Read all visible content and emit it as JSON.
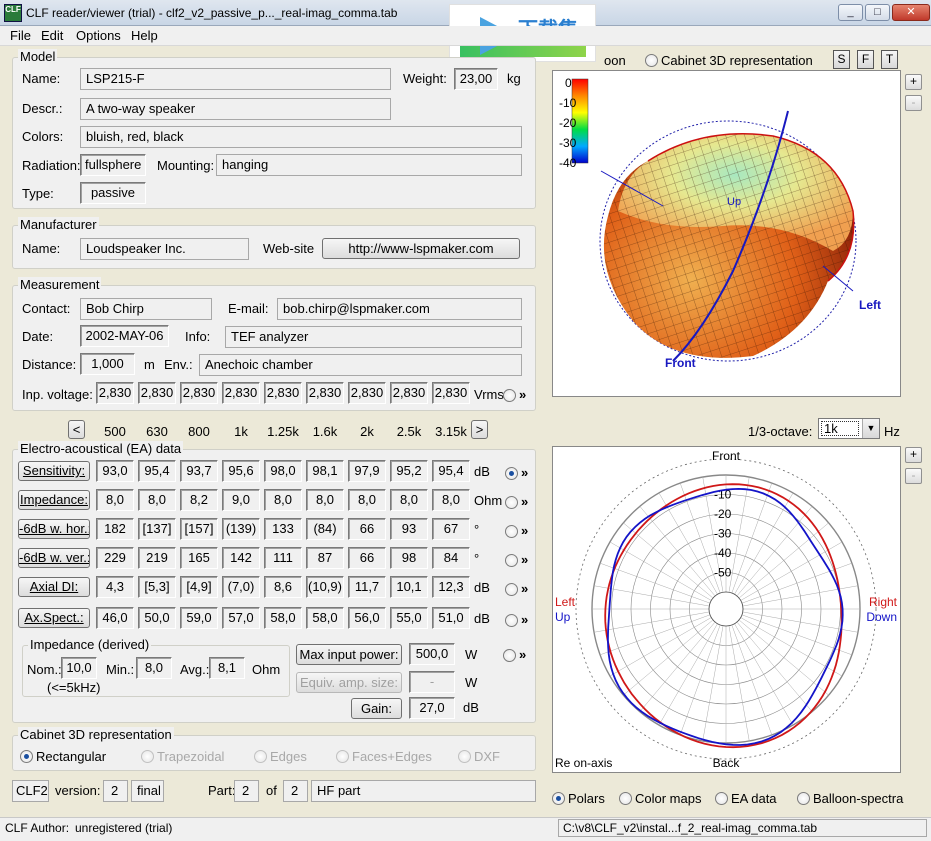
{
  "window": {
    "title": "CLF reader/viewer (trial) - clf2_v2_passive_p..._real-imag_comma.tab",
    "icon_text": "CLF",
    "min": "_",
    "max": "□",
    "close": "✕"
  },
  "watermark": {
    "text": "下载集"
  },
  "menu": [
    "File",
    "Edit",
    "Options",
    "Help"
  ],
  "model": {
    "title": "Model",
    "name_label": "Name:",
    "name": "LSP215-F",
    "weight_label": "Weight:",
    "weight": "23,00",
    "weight_unit": "kg",
    "descr_label": "Descr.:",
    "descr": "A two-way speaker",
    "colors_label": "Colors:",
    "colors": "bluish, red, black",
    "radiation_label": "Radiation:",
    "radiation": "fullsphere",
    "mounting_label": "Mounting:",
    "mounting": "hanging",
    "type_label": "Type:",
    "type": "passive"
  },
  "manufacturer": {
    "title": "Manufacturer",
    "name_label": "Name:",
    "name": "Loudspeaker Inc.",
    "website_label": "Web-site",
    "website": "http://www-lspmaker.com"
  },
  "measurement": {
    "title": "Measurement",
    "contact_label": "Contact:",
    "contact": "Bob Chirp",
    "email_label": "E-mail:",
    "email": "bob.chirp@lspmaker.com",
    "date_label": "Date:",
    "date": "2002-MAY-06",
    "info_label": "Info:",
    "info": "TEF analyzer",
    "distance_label": "Distance:",
    "distance": "1,000",
    "distance_unit": "m",
    "env_label": "Env.:",
    "env": "Anechoic chamber",
    "inp_label": "Inp. voltage:",
    "inp_values": [
      "2,830",
      "2,830",
      "2,830",
      "2,830",
      "2,830",
      "2,830",
      "2,830",
      "2,830",
      "2,830"
    ],
    "inp_unit": "Vrms"
  },
  "freq_nav": {
    "prev": "<",
    "next": ">",
    "freqs": [
      "500",
      "630",
      "800",
      "1k",
      "1.25k",
      "1.6k",
      "2k",
      "2.5k",
      "3.15k"
    ]
  },
  "ea": {
    "title": "Electro-acoustical (EA) data",
    "rows": [
      {
        "label": "Sensitivity:",
        "values": [
          "93,0",
          "95,4",
          "93,7",
          "95,6",
          "98,0",
          "98,1",
          "97,9",
          "95,2",
          "95,4"
        ],
        "unit": "dB",
        "selected": true
      },
      {
        "label": "Impedance:",
        "values": [
          "8,0",
          "8,0",
          "8,2",
          "9,0",
          "8,0",
          "8,0",
          "8,0",
          "8,0",
          "8,0"
        ],
        "unit": "Ohm",
        "selected": false
      },
      {
        "label": "-6dB w. hor.:",
        "values": [
          "182",
          "[137]",
          "[157]",
          "(139)",
          "133",
          "(84)",
          "66",
          "93",
          "67"
        ],
        "unit": "°",
        "selected": false
      },
      {
        "label": "-6dB w. ver.:",
        "values": [
          "229",
          "219",
          "165",
          "142",
          "111",
          "87",
          "66",
          "98",
          "84"
        ],
        "unit": "°",
        "selected": false
      },
      {
        "label": "Axial DI:",
        "values": [
          "4,3",
          "[5,3]",
          "[4,9]",
          "(7,0)",
          "8,6",
          "(10,9)",
          "11,7",
          "10,1",
          "12,3"
        ],
        "unit": "dB",
        "selected": false
      },
      {
        "label": "Ax.Spect.:",
        "values": [
          "46,0",
          "50,0",
          "59,0",
          "57,0",
          "58,0",
          "58,0",
          "56,0",
          "55,0",
          "51,0"
        ],
        "unit": "dB",
        "selected": false
      }
    ],
    "more": "»"
  },
  "impedance": {
    "title": "Impedance (derived)",
    "nom_label": "Nom.:",
    "nom": "10,0",
    "min_label": "Min.:",
    "min": "8,0",
    "avg_label": "Avg.:",
    "avg": "8,1",
    "unit": "Ohm",
    "note": "(<=5kHz)"
  },
  "power": {
    "max_label": "Max input power:",
    "max": "500,0",
    "max_unit": "W",
    "equiv_label": "Equiv. amp. size:",
    "equiv": "-",
    "equiv_unit": "W",
    "gain_label": "Gain:",
    "gain": "27,0",
    "gain_unit": "dB"
  },
  "cabinet": {
    "title": "Cabinet 3D representation",
    "options": [
      "Rectangular",
      "Trapezoidal",
      "Edges",
      "Faces+Edges",
      "DXF"
    ]
  },
  "footer": {
    "format": "CLF2",
    "version_label": "version:",
    "version": "2",
    "status": "final",
    "part_label": "Part:",
    "part": "2",
    "of_label": "of",
    "total": "2",
    "part_name": "HF part"
  },
  "right": {
    "top_tab1": "oon",
    "top_tab2": "Cabinet 3D representation",
    "view_btns": [
      "S",
      "F",
      "T"
    ],
    "plus": "+",
    "minus": "-",
    "balloon": {
      "scale": [
        "0",
        "-10",
        "-20",
        "-30",
        "-40"
      ],
      "left_label": "Left",
      "front_label": "Front",
      "up_label": "Up"
    },
    "octave_label": "1/3-octave:",
    "octave_value": "1k",
    "octave_unit": "Hz",
    "polar": {
      "front": "Front",
      "back": "Back",
      "left": "Left",
      "up": "Up",
      "right": "Right",
      "down": "Down",
      "rings": [
        "-10",
        "-20",
        "-30",
        "-40",
        "-50"
      ],
      "footer_note": "Re on-axis",
      "red_color": "#d01818",
      "blue_color": "#1414c8"
    },
    "view_options": [
      "Polars",
      "Color maps",
      "EA data",
      "Balloon-spectra"
    ]
  },
  "status": {
    "author_label": "CLF Author:",
    "author": "unregistered (trial)",
    "path": "C:\\v8\\CLF_v2\\instal...f_2_real-imag_comma.tab"
  }
}
